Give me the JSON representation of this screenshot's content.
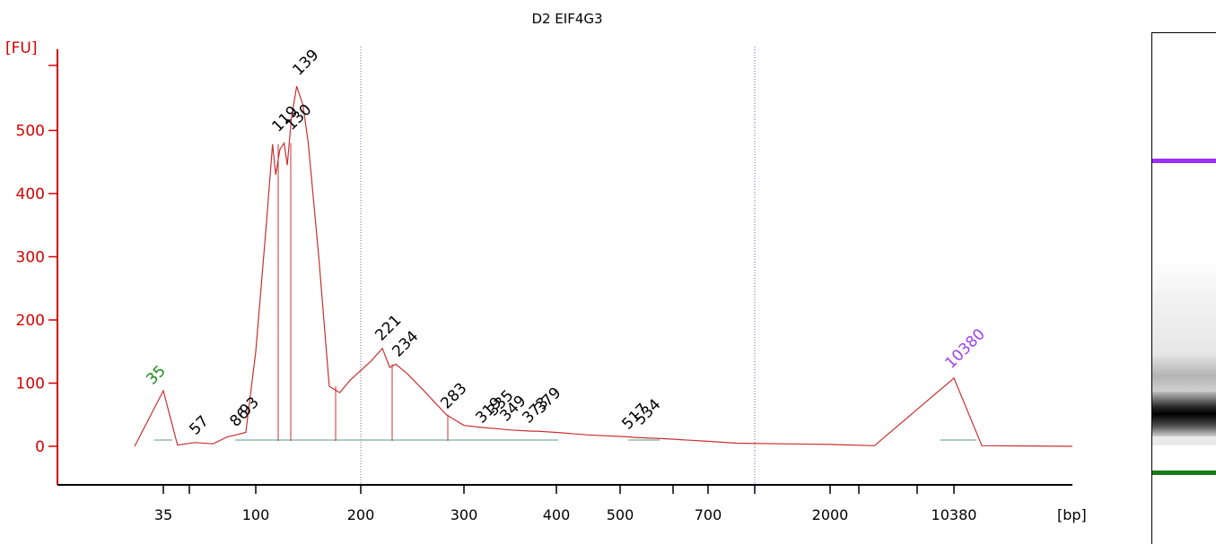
{
  "chart_data": {
    "type": "line",
    "title": "D2 EIF4G3",
    "ylabel": "[FU]",
    "xlabel": "[bp]",
    "ylim": [
      -60,
      620
    ],
    "yticks": [
      0,
      100,
      200,
      300,
      400,
      500
    ],
    "xticks": [
      "35",
      "100",
      "200",
      "300",
      "400",
      "500",
      "700",
      "2000",
      "10380"
    ],
    "series": [
      {
        "x": [
          35,
          45,
          57,
          70,
          80,
          86,
          93,
          100,
          110,
          116,
          119,
          123,
          127,
          130,
          134,
          139,
          145,
          150,
          160,
          170,
          180,
          190,
          200,
          210,
          221,
          228,
          234,
          245,
          260,
          283,
          300,
          319,
          335,
          349,
          373,
          379,
          400,
          450,
          517,
          534,
          600,
          700,
          1000,
          2000,
          5000,
          10380,
          15000
        ],
        "y": [
          88,
          2,
          6,
          4,
          15,
          18,
          22,
          150,
          350,
          478,
          430,
          470,
          480,
          445,
          520,
          570,
          540,
          480,
          300,
          95,
          85,
          105,
          120,
          135,
          155,
          125,
          130,
          115,
          90,
          50,
          33,
          30,
          28,
          26,
          24,
          24,
          22,
          18,
          15,
          14,
          12,
          8,
          5,
          3,
          1,
          108,
          1
        ]
      }
    ],
    "peak_labels": [
      {
        "label": "35",
        "color": "#1a8a1a"
      },
      {
        "label": "57",
        "color": "#000000"
      },
      {
        "label": "86",
        "color": "#000000"
      },
      {
        "label": "93",
        "color": "#000000"
      },
      {
        "label": "119",
        "color": "#000000"
      },
      {
        "label": "130",
        "color": "#000000"
      },
      {
        "label": "139",
        "color": "#000000"
      },
      {
        "label": "221",
        "color": "#000000"
      },
      {
        "label": "234",
        "color": "#000000"
      },
      {
        "label": "283",
        "color": "#000000"
      },
      {
        "label": "319",
        "color": "#000000"
      },
      {
        "label": "335",
        "color": "#000000"
      },
      {
        "label": "349",
        "color": "#000000"
      },
      {
        "label": "373",
        "color": "#000000"
      },
      {
        "label": "379",
        "color": "#000000"
      },
      {
        "label": "517",
        "color": "#000000"
      },
      {
        "label": "534",
        "color": "#000000"
      },
      {
        "label": "10380",
        "color": "#a040f0"
      }
    ],
    "gel_markers": {
      "upper_color": "#9b30ff",
      "lower_color": "#1a7a1a"
    }
  }
}
